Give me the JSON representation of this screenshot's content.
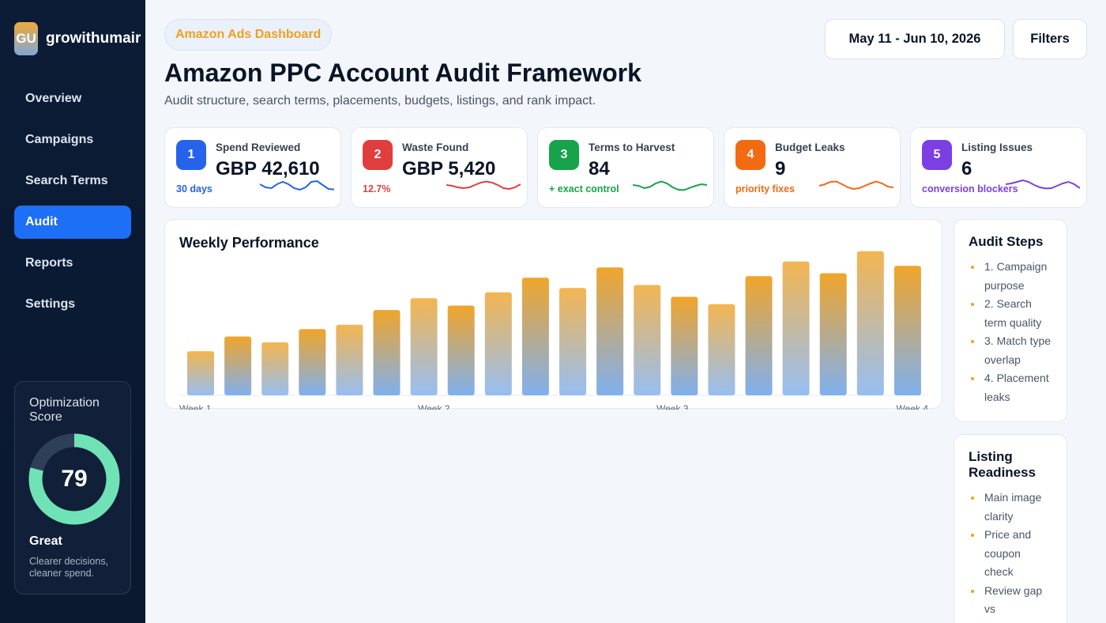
{
  "brand": {
    "logo": "GU",
    "name": "growithumair"
  },
  "nav": {
    "items": [
      {
        "label": "Overview",
        "active": false
      },
      {
        "label": "Campaigns",
        "active": false
      },
      {
        "label": "Search Terms",
        "active": false
      },
      {
        "label": "Audit",
        "active": true
      },
      {
        "label": "Reports",
        "active": false
      },
      {
        "label": "Settings",
        "active": false
      }
    ]
  },
  "score": {
    "title": "Optimization Score",
    "value": 79,
    "status": "Great",
    "description": "Clearer decisions, cleaner spend.",
    "ring_color": "#6fe3b5",
    "track_color": "#2f3f57"
  },
  "header": {
    "pill": "Amazon Ads Dashboard",
    "title": "Amazon PPC Account Audit Framework",
    "subtitle": "Audit structure, search terms, placements, budgets, listings, and rank impact.",
    "date_range": "May 11 - Jun 10, 2026",
    "filters_label": "Filters"
  },
  "kpis": [
    {
      "num": "1",
      "label": "Spend Reviewed",
      "value": "GBP 42,610",
      "note": "30 days",
      "color": "#2563eb",
      "spark": [
        0.55,
        0.35,
        0.3,
        0.55,
        0.7,
        0.55,
        0.3,
        0.2,
        0.35,
        0.7,
        0.75,
        0.5,
        0.25,
        0.22
      ]
    },
    {
      "num": "2",
      "label": "Waste Found",
      "value": "GBP 5,420",
      "note": "12.7%",
      "color": "#e03e3e",
      "spark": [
        0.5,
        0.45,
        0.35,
        0.3,
        0.35,
        0.5,
        0.65,
        0.72,
        0.65,
        0.5,
        0.3,
        0.25,
        0.35,
        0.55
      ]
    },
    {
      "num": "3",
      "label": "Terms to Harvest",
      "value": "84",
      "note": "+ exact control",
      "color": "#16a34a",
      "spark": [
        0.5,
        0.45,
        0.3,
        0.38,
        0.6,
        0.72,
        0.6,
        0.35,
        0.2,
        0.18,
        0.32,
        0.45,
        0.55,
        0.5
      ]
    },
    {
      "num": "4",
      "label": "Budget Leaks",
      "value": "9",
      "note": "priority fixes",
      "color": "#f26a12",
      "spark": [
        0.45,
        0.55,
        0.7,
        0.72,
        0.55,
        0.35,
        0.25,
        0.3,
        0.45,
        0.6,
        0.72,
        0.6,
        0.4,
        0.35
      ]
    },
    {
      "num": "5",
      "label": "Listing Issues",
      "value": "6",
      "note": "conversion blockers",
      "color": "#7b3fe4",
      "spark": [
        0.55,
        0.6,
        0.7,
        0.8,
        0.7,
        0.5,
        0.35,
        0.28,
        0.3,
        0.45,
        0.6,
        0.7,
        0.55,
        0.3
      ]
    }
  ],
  "chart_data": {
    "type": "bar",
    "title": "Weekly Performance",
    "x_tick_labels": [
      "Week 1",
      "Week 2",
      "Week 3",
      "Week 4"
    ],
    "values": [
      30,
      40,
      36,
      45,
      48,
      58,
      66,
      61,
      70,
      80,
      73,
      87,
      75,
      67,
      62,
      81,
      91,
      83,
      98,
      88
    ],
    "ylim": [
      0,
      100
    ],
    "bar_top_color": "#f0a52a",
    "bar_bottom_color": "#7fb0f0",
    "grid": false
  },
  "audit_steps": {
    "title": "Audit Steps",
    "items": [
      "1. Campaign purpose",
      "2. Search term quality",
      "3. Match type overlap",
      "4. Placement leaks"
    ]
  },
  "listing_readiness": {
    "title": "Listing Readiness",
    "items": [
      "Main image clarity",
      "Price and coupon check",
      "Review gap vs"
    ]
  }
}
